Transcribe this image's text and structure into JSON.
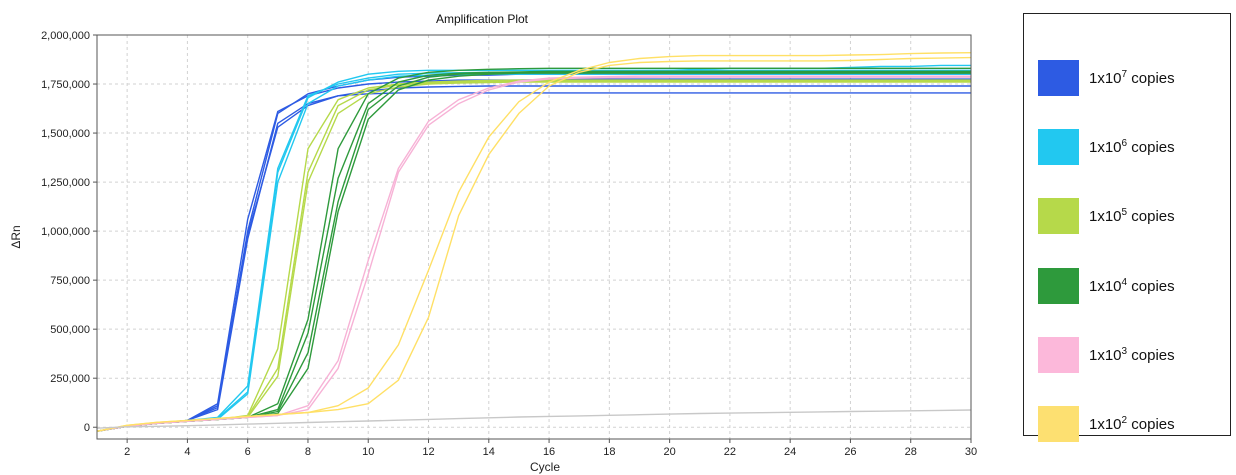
{
  "chart_data": {
    "type": "line",
    "title": "Amplification Plot",
    "xlabel": "Cycle",
    "ylabel": "ΔRn",
    "xlim": [
      1,
      30
    ],
    "ylim": [
      -60000,
      2000000
    ],
    "x_ticks": [
      2,
      4,
      6,
      8,
      10,
      12,
      14,
      16,
      18,
      20,
      22,
      24,
      26,
      28,
      30
    ],
    "x_tick_labels": [
      "2",
      "4",
      "6",
      "8",
      "10",
      "12",
      "14",
      "16",
      "18",
      "20",
      "22",
      "24",
      "26",
      "28",
      "30"
    ],
    "y_ticks": [
      0,
      250000,
      500000,
      750000,
      1000000,
      1250000,
      1500000,
      1750000,
      2000000
    ],
    "y_tick_labels": [
      "0",
      "250,000",
      "500,000",
      "750,000",
      "1,000,000",
      "1,250,000",
      "1,500,000",
      "1,750,000",
      "2,000,000"
    ],
    "grid": true,
    "x": [
      1,
      2,
      3,
      4,
      5,
      6,
      7,
      8,
      9,
      10,
      11,
      12,
      13,
      14,
      15,
      16,
      17,
      18,
      19,
      20,
      21,
      22,
      23,
      24,
      25,
      26,
      27,
      28,
      29,
      30
    ],
    "series": [
      {
        "color": "#2d5be3",
        "values": [
          -20000,
          5000,
          20000,
          35000,
          100000,
          1000000,
          1600000,
          1700000,
          1740000,
          1770000,
          1785000,
          1790000,
          1795000,
          1795000,
          1800000,
          1800000,
          1800000,
          1800000,
          1800000,
          1800000,
          1800000,
          1800000,
          1800000,
          1800000,
          1800000,
          1800000,
          1800000,
          1800000,
          1800000,
          1800000
        ]
      },
      {
        "color": "#2d5be3",
        "values": [
          -20000,
          5000,
          20000,
          35000,
          120000,
          1060000,
          1610000,
          1690000,
          1730000,
          1750000,
          1760000,
          1765000,
          1770000,
          1770000,
          1770000,
          1772000,
          1774000,
          1775000,
          1775000,
          1775000,
          1775000,
          1775000,
          1775000,
          1775000,
          1775000,
          1775000,
          1775000,
          1775000,
          1775000,
          1775000
        ]
      },
      {
        "color": "#2d5be3",
        "values": [
          -20000,
          5000,
          20000,
          35000,
          90000,
          960000,
          1550000,
          1650000,
          1690000,
          1700000,
          1705000,
          1705000,
          1705000,
          1705000,
          1705000,
          1705000,
          1705000,
          1705000,
          1705000,
          1705000,
          1705000,
          1705000,
          1705000,
          1705000,
          1705000,
          1705000,
          1705000,
          1705000,
          1705000,
          1705000
        ]
      },
      {
        "color": "#2d5be3",
        "values": [
          -20000,
          5000,
          20000,
          35000,
          110000,
          980000,
          1530000,
          1640000,
          1690000,
          1715000,
          1730000,
          1735000,
          1738000,
          1740000,
          1740000,
          1740000,
          1740000,
          1740000,
          1740000,
          1740000,
          1740000,
          1740000,
          1740000,
          1740000,
          1740000,
          1740000,
          1740000,
          1740000,
          1740000,
          1740000
        ]
      },
      {
        "color": "#22c8f0",
        "values": [
          -20000,
          5000,
          20000,
          35000,
          45000,
          180000,
          1300000,
          1680000,
          1760000,
          1800000,
          1815000,
          1820000,
          1820000,
          1820000,
          1820000,
          1820000,
          1820000,
          1820000,
          1820000,
          1820000,
          1820000,
          1820000,
          1820000,
          1820000,
          1820000,
          1820000,
          1820000,
          1820000,
          1820000,
          1820000
        ]
      },
      {
        "color": "#22c8f0",
        "values": [
          -20000,
          5000,
          20000,
          35000,
          50000,
          210000,
          1320000,
          1690000,
          1750000,
          1780000,
          1800000,
          1805000,
          1808000,
          1810000,
          1810000,
          1812000,
          1815000,
          1815000,
          1818000,
          1820000,
          1825000,
          1830000,
          1830000,
          1830000,
          1830000,
          1835000,
          1840000,
          1840000,
          1845000,
          1845000
        ]
      },
      {
        "color": "#22c8f0",
        "values": [
          -20000,
          5000,
          20000,
          35000,
          40000,
          170000,
          1250000,
          1650000,
          1740000,
          1770000,
          1790000,
          1795000,
          1798000,
          1800000,
          1800000,
          1800000,
          1800000,
          1800000,
          1800000,
          1800000,
          1800000,
          1800000,
          1800000,
          1800000,
          1800000,
          1800000,
          1800000,
          1800000,
          1800000,
          1800000
        ]
      },
      {
        "color": "#b6d94a",
        "values": [
          -20000,
          5000,
          20000,
          30000,
          40000,
          60000,
          400000,
          1420000,
          1670000,
          1730000,
          1750000,
          1760000,
          1765000,
          1768000,
          1770000,
          1770000,
          1770000,
          1770000,
          1770000,
          1770000,
          1770000,
          1770000,
          1770000,
          1770000,
          1770000,
          1770000,
          1770000,
          1770000,
          1770000,
          1770000
        ]
      },
      {
        "color": "#b6d94a",
        "values": [
          -20000,
          5000,
          20000,
          30000,
          40000,
          55000,
          300000,
          1300000,
          1640000,
          1720000,
          1745000,
          1755000,
          1760000,
          1762000,
          1765000,
          1765000,
          1765000,
          1765000,
          1765000,
          1765000,
          1765000,
          1765000,
          1765000,
          1765000,
          1765000,
          1765000,
          1765000,
          1765000,
          1765000,
          1765000
        ]
      },
      {
        "color": "#b6d94a",
        "values": [
          -20000,
          5000,
          20000,
          30000,
          40000,
          50000,
          260000,
          1250000,
          1600000,
          1700000,
          1735000,
          1750000,
          1755000,
          1758000,
          1760000,
          1760000,
          1760000,
          1760000,
          1760000,
          1760000,
          1760000,
          1760000,
          1760000,
          1760000,
          1760000,
          1760000,
          1760000,
          1760000,
          1760000,
          1760000
        ]
      },
      {
        "color": "#2e9a3c",
        "values": [
          -20000,
          5000,
          20000,
          30000,
          40000,
          50000,
          120000,
          550000,
          1420000,
          1700000,
          1780000,
          1810000,
          1820000,
          1825000,
          1828000,
          1830000,
          1830000,
          1830000,
          1830000,
          1830000,
          1830000,
          1830000,
          1830000,
          1830000,
          1830000,
          1830000,
          1830000,
          1830000,
          1830000,
          1830000
        ]
      },
      {
        "color": "#2e9a3c",
        "values": [
          -20000,
          5000,
          20000,
          30000,
          40000,
          50000,
          90000,
          480000,
          1270000,
          1650000,
          1760000,
          1795000,
          1805000,
          1810000,
          1812000,
          1815000,
          1815000,
          1815000,
          1815000,
          1815000,
          1815000,
          1815000,
          1815000,
          1815000,
          1815000,
          1815000,
          1815000,
          1815000,
          1815000,
          1815000
        ]
      },
      {
        "color": "#2e9a3c",
        "values": [
          -20000,
          5000,
          20000,
          30000,
          40000,
          50000,
          80000,
          380000,
          1150000,
          1620000,
          1740000,
          1785000,
          1800000,
          1805000,
          1808000,
          1810000,
          1810000,
          1810000,
          1810000,
          1810000,
          1810000,
          1810000,
          1810000,
          1810000,
          1810000,
          1810000,
          1810000,
          1810000,
          1810000,
          1810000
        ]
      },
      {
        "color": "#2e9a3c",
        "values": [
          -20000,
          5000,
          20000,
          30000,
          40000,
          50000,
          70000,
          300000,
          1100000,
          1570000,
          1720000,
          1770000,
          1790000,
          1800000,
          1805000,
          1805000,
          1805000,
          1805000,
          1805000,
          1805000,
          1805000,
          1805000,
          1805000,
          1805000,
          1805000,
          1805000,
          1805000,
          1805000,
          1805000,
          1805000
        ]
      },
      {
        "color": "#f7b2d6",
        "values": [
          -20000,
          5000,
          20000,
          30000,
          40000,
          50000,
          60000,
          90000,
          300000,
          780000,
          1300000,
          1540000,
          1650000,
          1720000,
          1760000,
          1775000,
          1780000,
          1782000,
          1784000,
          1785000,
          1785000,
          1785000,
          1785000,
          1785000,
          1785000,
          1785000,
          1785000,
          1785000,
          1785000,
          1785000
        ]
      },
      {
        "color": "#f7b2d6",
        "values": [
          -20000,
          5000,
          20000,
          30000,
          40000,
          50000,
          60000,
          110000,
          340000,
          850000,
          1320000,
          1560000,
          1670000,
          1730000,
          1765000,
          1780000,
          1785000,
          1788000,
          1790000,
          1790000,
          1790000,
          1790000,
          1790000,
          1790000,
          1790000,
          1790000,
          1790000,
          1790000,
          1790000,
          1790000
        ]
      },
      {
        "color": "#ffe066",
        "values": [
          -20000,
          10000,
          25000,
          35000,
          45000,
          55000,
          65000,
          75000,
          110000,
          200000,
          420000,
          800000,
          1200000,
          1480000,
          1660000,
          1760000,
          1820000,
          1860000,
          1880000,
          1890000,
          1895000,
          1895000,
          1895000,
          1895000,
          1895000,
          1898000,
          1900000,
          1905000,
          1908000,
          1910000
        ]
      },
      {
        "color": "#ffe066",
        "values": [
          -20000,
          10000,
          25000,
          35000,
          45000,
          55000,
          65000,
          75000,
          90000,
          120000,
          240000,
          560000,
          1080000,
          1390000,
          1600000,
          1740000,
          1810000,
          1845000,
          1860000,
          1865000,
          1868000,
          1868000,
          1868000,
          1868000,
          1868000,
          1870000,
          1875000,
          1880000,
          1882000,
          1885000
        ]
      },
      {
        "color": "#c8c8c8",
        "values": [
          -5000,
          2000,
          5000,
          8000,
          12000,
          16000,
          20000,
          24000,
          28000,
          32000,
          36000,
          40000,
          44000,
          48000,
          52000,
          55000,
          58000,
          61000,
          64000,
          67000,
          70000,
          72000,
          74000,
          76000,
          78000,
          80000,
          82000,
          84000,
          86000,
          88000
        ]
      }
    ]
  },
  "legend": {
    "items": [
      {
        "prefix": "1x10",
        "exponent": "7",
        "suffix": " copies",
        "color": "#2d5be3"
      },
      {
        "prefix": "1x10",
        "exponent": "6",
        "suffix": " copies",
        "color": "#22c8f0"
      },
      {
        "prefix": "1x10",
        "exponent": "5",
        "suffix": " copies",
        "color": "#b6d94a"
      },
      {
        "prefix": "1x10",
        "exponent": "4",
        "suffix": " copies",
        "color": "#2e9a3c"
      },
      {
        "prefix": "1x10",
        "exponent": "3",
        "suffix": " copies",
        "color": "#fcb8da"
      },
      {
        "prefix": "1x10",
        "exponent": "2",
        "suffix": " copies",
        "color": "#fde071"
      }
    ]
  }
}
